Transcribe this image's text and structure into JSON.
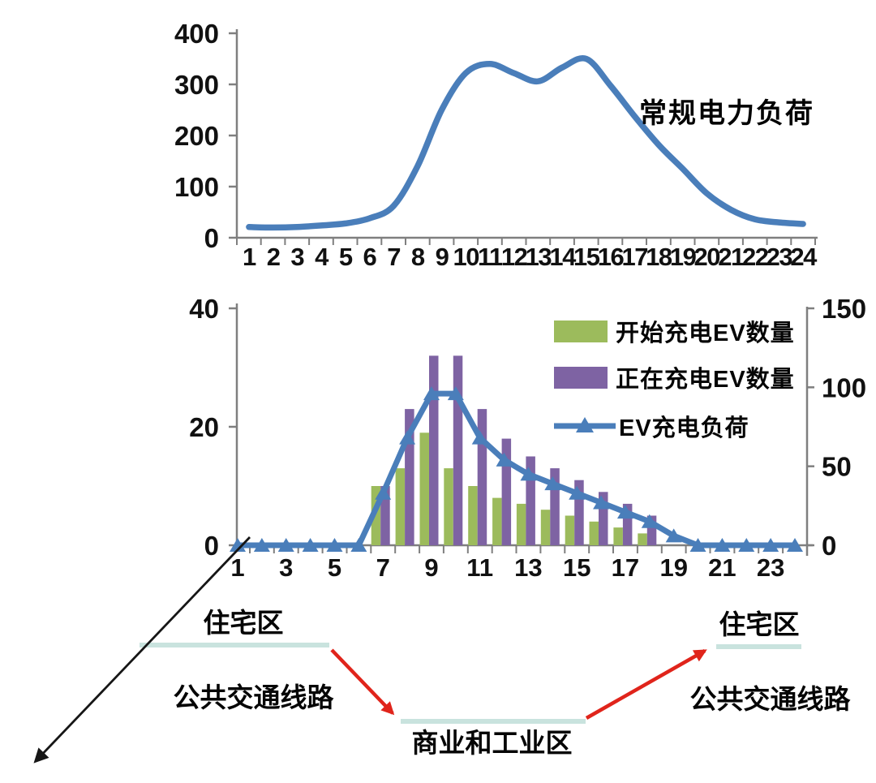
{
  "charts": [
    {
      "id": "conventional-load",
      "type": "line",
      "annotation": "常规电力负荷",
      "x": [
        1,
        2,
        3,
        4,
        5,
        6,
        7,
        8,
        9,
        10,
        11,
        12,
        13,
        14,
        15,
        16,
        17,
        18,
        19,
        20,
        21,
        22,
        23,
        24
      ],
      "values": [
        21,
        20,
        21,
        24,
        28,
        38,
        62,
        140,
        250,
        322,
        340,
        322,
        306,
        333,
        350,
        298,
        238,
        182,
        135,
        87,
        55,
        36,
        30,
        27
      ],
      "ylim": [
        0,
        400
      ],
      "yticks": [
        0,
        100,
        200,
        300,
        400
      ],
      "line_color": "#4a7eba",
      "axis_color": "#7f7f7f",
      "grid": false,
      "legend_position": "none"
    },
    {
      "id": "ev-charging",
      "type": "combo-bar-line",
      "x": [
        1,
        2,
        3,
        4,
        5,
        6,
        7,
        8,
        9,
        10,
        11,
        12,
        13,
        14,
        15,
        16,
        17,
        18,
        19,
        20,
        21,
        22,
        23,
        24
      ],
      "xticklabels": [
        "1",
        "3",
        "5",
        "7",
        "9",
        "11",
        "13",
        "15",
        "17",
        "19",
        "21",
        "23"
      ],
      "series": [
        {
          "name": "开始充电EV数量",
          "type": "bar",
          "axis": "left",
          "color": "#9cbb5c",
          "values": [
            0,
            0,
            0,
            0,
            0,
            0,
            10,
            13,
            19,
            13,
            10,
            8,
            7,
            6,
            5,
            4,
            3,
            2,
            0,
            0,
            0,
            0,
            0,
            0
          ]
        },
        {
          "name": "正在充电EV数量",
          "type": "bar",
          "axis": "left",
          "color": "#7e63a3",
          "values": [
            0,
            0,
            0,
            0,
            0,
            0,
            10,
            23,
            32,
            32,
            23,
            18,
            15,
            13,
            11,
            9,
            7,
            5,
            0,
            0,
            0,
            0,
            0,
            0
          ]
        },
        {
          "name": "EV充电负荷",
          "type": "line",
          "axis": "right",
          "color": "#4a7eba",
          "marker": "triangle",
          "values": [
            0,
            0,
            0,
            0,
            0,
            0,
            33,
            68,
            96,
            96,
            68,
            54,
            45,
            39,
            33,
            27,
            21,
            15,
            6,
            0,
            0,
            0,
            0,
            0
          ]
        }
      ],
      "left_ylim": [
        0,
        40
      ],
      "left_yticks": [
        0,
        20,
        40
      ],
      "right_ylim": [
        0,
        150
      ],
      "right_yticks": [
        0,
        50,
        100,
        150
      ],
      "axis_color": "#7f7f7f",
      "grid": false,
      "legend_position": "top-right"
    }
  ],
  "diagram": {
    "residential_left": "住宅区",
    "residential_right": "住宅区",
    "transit_left": "公共交通线路",
    "transit_right": "公共交通线路",
    "commercial": "商业和工业区",
    "platform_color": "#c9e3de",
    "red_arrow_color": "#e0241b",
    "black_arrow_color": "#161616"
  }
}
